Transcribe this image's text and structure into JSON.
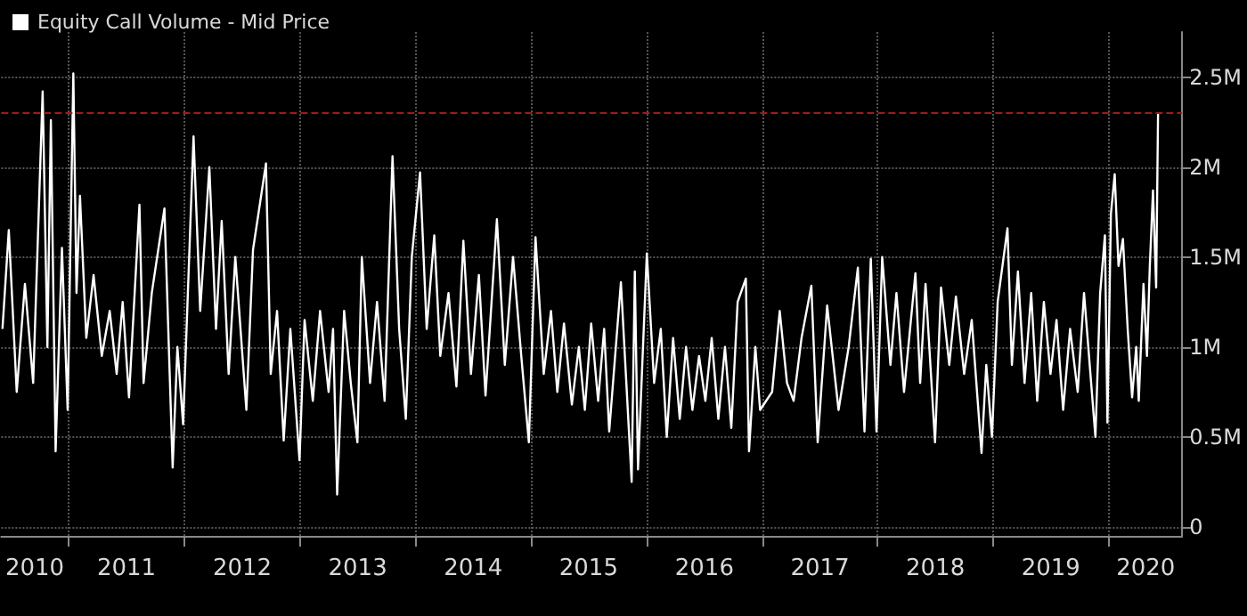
{
  "chart_data": {
    "type": "line",
    "x": [
      "2010-06-05",
      "2010-06-25",
      "2010-07-20",
      "2010-08-15",
      "2010-09-10",
      "2010-10-10",
      "2010-10-25",
      "2010-11-05",
      "2010-11-20",
      "2010-12-10",
      "2010-12-28",
      "2011-01-15",
      "2011-01-25",
      "2011-02-05",
      "2011-02-25",
      "2011-03-20",
      "2011-04-15",
      "2011-05-10",
      "2011-06-01",
      "2011-06-20",
      "2011-07-10",
      "2011-08-12",
      "2011-08-25",
      "2011-09-20",
      "2011-10-30",
      "2011-11-25",
      "2011-12-10",
      "2011-12-28",
      "2012-01-30",
      "2012-02-20",
      "2012-03-20",
      "2012-04-10",
      "2012-04-28",
      "2012-05-20",
      "2012-06-10",
      "2012-07-15",
      "2012-08-05",
      "2012-09-15",
      "2012-09-30",
      "2012-10-20",
      "2012-11-10",
      "2012-12-01",
      "2012-12-30",
      "2013-01-15",
      "2013-02-10",
      "2013-03-05",
      "2013-04-01",
      "2013-04-15",
      "2013-04-28",
      "2013-05-20",
      "2013-06-10",
      "2013-07-01",
      "2013-07-15",
      "2013-08-10",
      "2013-09-01",
      "2013-09-25",
      "2013-10-20",
      "2013-11-10",
      "2013-12-01",
      "2013-12-20",
      "2014-01-15",
      "2014-02-05",
      "2014-03-01",
      "2014-03-20",
      "2014-04-15",
      "2014-05-10",
      "2014-06-01",
      "2014-06-25",
      "2014-07-20",
      "2014-08-10",
      "2014-09-15",
      "2014-10-10",
      "2014-11-05",
      "2014-12-01",
      "2014-12-25",
      "2015-01-15",
      "2015-02-10",
      "2015-03-05",
      "2015-03-25",
      "2015-04-15",
      "2015-05-10",
      "2015-06-01",
      "2015-06-20",
      "2015-07-10",
      "2015-08-01",
      "2015-08-20",
      "2015-09-05",
      "2015-10-12",
      "2015-11-15",
      "2015-11-25",
      "2015-12-05",
      "2016-01-02",
      "2016-01-25",
      "2016-02-15",
      "2016-03-05",
      "2016-03-25",
      "2016-04-15",
      "2016-05-05",
      "2016-05-25",
      "2016-06-15",
      "2016-07-05",
      "2016-07-25",
      "2016-08-15",
      "2016-09-05",
      "2016-09-25",
      "2016-10-15",
      "2016-11-10",
      "2016-11-20",
      "2016-12-10",
      "2016-12-25",
      "2017-02-01",
      "2017-02-25",
      "2017-03-20",
      "2017-04-10",
      "2017-05-05",
      "2017-06-05",
      "2017-06-25",
      "2017-07-25",
      "2017-08-30",
      "2017-10-01",
      "2017-10-30",
      "2017-11-20",
      "2017-12-10",
      "2017-12-28",
      "2018-01-15",
      "2018-02-10",
      "2018-03-01",
      "2018-03-25",
      "2018-04-30",
      "2018-05-15",
      "2018-06-01",
      "2018-07-01",
      "2018-07-20",
      "2018-08-15",
      "2018-09-05",
      "2018-10-01",
      "2018-10-25",
      "2018-11-25",
      "2018-12-10",
      "2018-12-28",
      "2019-01-15",
      "2019-02-15",
      "2019-03-01",
      "2019-03-20",
      "2019-04-10",
      "2019-05-01",
      "2019-05-20",
      "2019-06-10",
      "2019-07-01",
      "2019-07-20",
      "2019-08-10",
      "2019-09-01",
      "2019-09-25",
      "2019-10-15",
      "2019-11-20",
      "2019-12-05",
      "2019-12-20",
      "2019-12-28",
      "2020-01-08",
      "2020-01-20",
      "2020-02-01",
      "2020-02-15",
      "2020-03-01",
      "2020-03-15",
      "2020-03-28",
      "2020-04-05",
      "2020-04-20",
      "2020-05-01",
      "2020-05-10",
      "2020-05-20",
      "2020-05-30",
      "2020-06-05"
    ],
    "series": [
      {
        "name": "Equity Call Volume - Mid Price",
        "color": "#ffffff",
        "values": [
          1.1,
          1.65,
          0.75,
          1.35,
          0.8,
          2.42,
          1.0,
          2.26,
          0.42,
          1.55,
          0.65,
          2.52,
          1.3,
          1.84,
          1.05,
          1.4,
          0.95,
          1.2,
          0.85,
          1.25,
          0.72,
          1.79,
          0.8,
          1.3,
          1.77,
          0.33,
          1.0,
          0.57,
          2.17,
          1.2,
          2.0,
          1.1,
          1.7,
          0.85,
          1.5,
          0.65,
          1.54,
          2.02,
          0.85,
          1.2,
          0.48,
          1.1,
          0.37,
          1.15,
          0.7,
          1.2,
          0.75,
          1.1,
          0.18,
          1.2,
          0.8,
          0.47,
          1.5,
          0.8,
          1.25,
          0.7,
          2.06,
          1.1,
          0.6,
          1.5,
          1.97,
          1.1,
          1.62,
          0.95,
          1.3,
          0.78,
          1.59,
          0.85,
          1.4,
          0.73,
          1.71,
          0.9,
          1.5,
          0.95,
          0.47,
          1.61,
          0.85,
          1.2,
          0.75,
          1.13,
          0.68,
          1.0,
          0.65,
          1.13,
          0.7,
          1.1,
          0.53,
          1.36,
          0.25,
          1.42,
          0.32,
          1.52,
          0.8,
          1.1,
          0.5,
          1.05,
          0.6,
          1.0,
          0.65,
          0.95,
          0.7,
          1.05,
          0.6,
          1.0,
          0.55,
          1.25,
          1.38,
          0.42,
          1.0,
          0.65,
          0.75,
          1.2,
          0.8,
          0.7,
          1.05,
          1.34,
          0.47,
          1.23,
          0.65,
          1.0,
          1.44,
          0.53,
          1.49,
          0.53,
          1.5,
          0.9,
          1.3,
          0.75,
          1.41,
          0.8,
          1.35,
          0.47,
          1.33,
          0.9,
          1.28,
          0.85,
          1.15,
          0.41,
          0.9,
          0.5,
          1.25,
          1.66,
          0.9,
          1.42,
          0.8,
          1.3,
          0.7,
          1.25,
          0.85,
          1.15,
          0.65,
          1.1,
          0.75,
          1.3,
          0.5,
          1.3,
          1.62,
          0.58,
          1.74,
          1.96,
          1.45,
          1.6,
          1.1,
          0.72,
          1.0,
          0.7,
          1.35,
          0.95,
          1.45,
          1.87,
          1.33,
          2.3
        ]
      }
    ],
    "xlim": [
      "2010-06-01",
      "2020-08-20"
    ],
    "xticks": [
      {
        "value": "2010-09-15",
        "label": "2010"
      },
      {
        "value": "2011-01-01",
        "label": null
      },
      {
        "value": "2011-07-02",
        "label": "2011"
      },
      {
        "value": "2012-01-01",
        "label": null
      },
      {
        "value": "2012-07-02",
        "label": "2012"
      },
      {
        "value": "2013-01-01",
        "label": null
      },
      {
        "value": "2013-07-02",
        "label": "2013"
      },
      {
        "value": "2014-01-01",
        "label": null
      },
      {
        "value": "2014-07-02",
        "label": "2014"
      },
      {
        "value": "2015-01-01",
        "label": null
      },
      {
        "value": "2015-07-02",
        "label": "2015"
      },
      {
        "value": "2016-01-01",
        "label": null
      },
      {
        "value": "2016-07-02",
        "label": "2016"
      },
      {
        "value": "2017-01-01",
        "label": null
      },
      {
        "value": "2017-07-02",
        "label": "2017"
      },
      {
        "value": "2018-01-01",
        "label": null
      },
      {
        "value": "2018-07-02",
        "label": "2018"
      },
      {
        "value": "2019-01-01",
        "label": null
      },
      {
        "value": "2019-07-02",
        "label": "2019"
      },
      {
        "value": "2020-01-01",
        "label": null
      },
      {
        "value": "2020-04-27",
        "label": "2020"
      }
    ],
    "ylim": [
      -0.05,
      2.75
    ],
    "yticks": [
      {
        "value": 0,
        "label": "0"
      },
      {
        "value": 0.5,
        "label": "0.5M"
      },
      {
        "value": 1,
        "label": "1M"
      },
      {
        "value": 1.5,
        "label": "1.5M"
      },
      {
        "value": 2,
        "label": "2M"
      },
      {
        "value": 2.5,
        "label": "2.5M"
      }
    ],
    "ref_lines": [
      {
        "axis": "y",
        "value": 2.3,
        "color": "#9b1c1c",
        "line_style": "dashed"
      }
    ],
    "grid": true,
    "legend": "top left",
    "line_style": "solid",
    "marker": "none"
  }
}
